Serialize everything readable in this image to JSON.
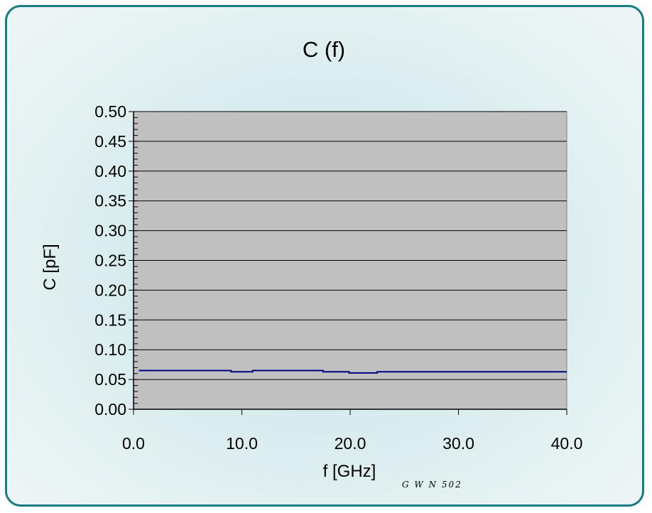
{
  "colors": {
    "frame_border": "#177b7f",
    "plot_background": "#c0c0c0",
    "series_line": "#00007f"
  },
  "chart_data": {
    "type": "line",
    "title": "C (f)",
    "xlabel": "f [GHz]",
    "ylabel": "C [pF]",
    "annotation": "G W N 502",
    "xlim": [
      0,
      40
    ],
    "ylim": [
      0,
      0.5
    ],
    "x_ticks": [
      "0.0",
      "10.0",
      "20.0",
      "30.0",
      "40.0"
    ],
    "y_ticks": [
      "0.00",
      "0.05",
      "0.10",
      "0.15",
      "0.20",
      "0.25",
      "0.30",
      "0.35",
      "0.40",
      "0.45",
      "0.50"
    ],
    "grid": "horizontal",
    "series": [
      {
        "x": [
          0.5,
          9.0,
          9.0,
          11.0,
          11.0,
          17.5,
          17.5,
          19.9,
          19.9,
          22.5,
          22.5,
          40.0
        ],
        "y": [
          0.065,
          0.065,
          0.063,
          0.063,
          0.065,
          0.065,
          0.063,
          0.063,
          0.061,
          0.061,
          0.063,
          0.063
        ]
      }
    ]
  }
}
